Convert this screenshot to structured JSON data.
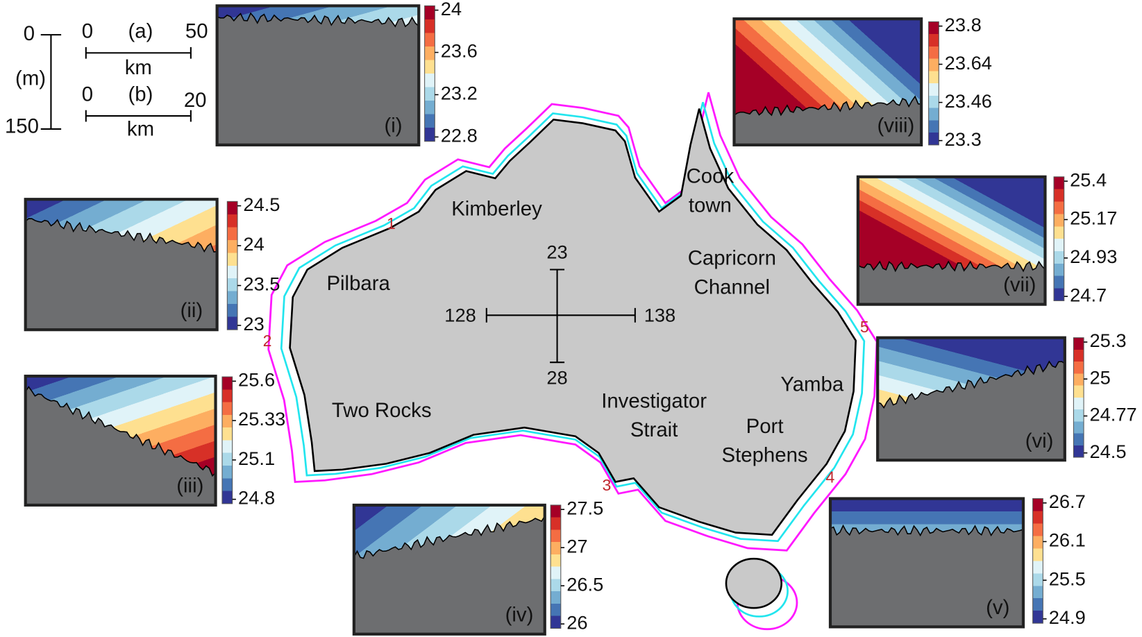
{
  "scale_legend": {
    "depth": {
      "top": "0",
      "unit": "(m)",
      "bottom": "150"
    },
    "a": {
      "start": "0",
      "label": "(a)",
      "end": "50",
      "unit": "km"
    },
    "b": {
      "start": "0",
      "label": "(b)",
      "end": "20",
      "unit": "km"
    }
  },
  "map": {
    "regions": [
      {
        "lines": [
          "Kimberley"
        ]
      },
      {
        "lines": [
          "Pilbara"
        ]
      },
      {
        "lines": [
          "Two Rocks"
        ]
      },
      {
        "lines": [
          "Investigator",
          "Strait"
        ]
      },
      {
        "lines": [
          "Port",
          "Stephens"
        ]
      },
      {
        "lines": [
          "Yamba"
        ]
      },
      {
        "lines": [
          "Capricorn",
          "Channel"
        ]
      },
      {
        "lines": [
          "Cook",
          "town"
        ]
      }
    ],
    "transects": [
      "1",
      "2",
      "3",
      "4",
      "5"
    ],
    "crosshair": {
      "north": "23",
      "south": "28",
      "west": "128",
      "east": "138"
    }
  },
  "panels": [
    {
      "label": "(i)",
      "colorbar_ticks": [
        "24",
        "23.6",
        "23.2",
        "22.8"
      ]
    },
    {
      "label": "(ii)",
      "colorbar_ticks": [
        "24.5",
        "24",
        "23.5",
        "23"
      ]
    },
    {
      "label": "(iii)",
      "colorbar_ticks": [
        "25.6",
        "25.33",
        "25.1",
        "24.8"
      ]
    },
    {
      "label": "(iv)",
      "colorbar_ticks": [
        "27.5",
        "27",
        "26.5",
        "26"
      ]
    },
    {
      "label": "(v)",
      "colorbar_ticks": [
        "26.7",
        "26.1",
        "25.5",
        "24.9"
      ]
    },
    {
      "label": "(vi)",
      "colorbar_ticks": [
        "25.3",
        "25",
        "24.77",
        "24.5"
      ]
    },
    {
      "label": "(vii)",
      "colorbar_ticks": [
        "25.4",
        "25.17",
        "24.93",
        "24.7"
      ]
    },
    {
      "label": "(viii)",
      "colorbar_ticks": [
        "23.8",
        "23.64",
        "23.46",
        "23.3"
      ]
    }
  ]
}
